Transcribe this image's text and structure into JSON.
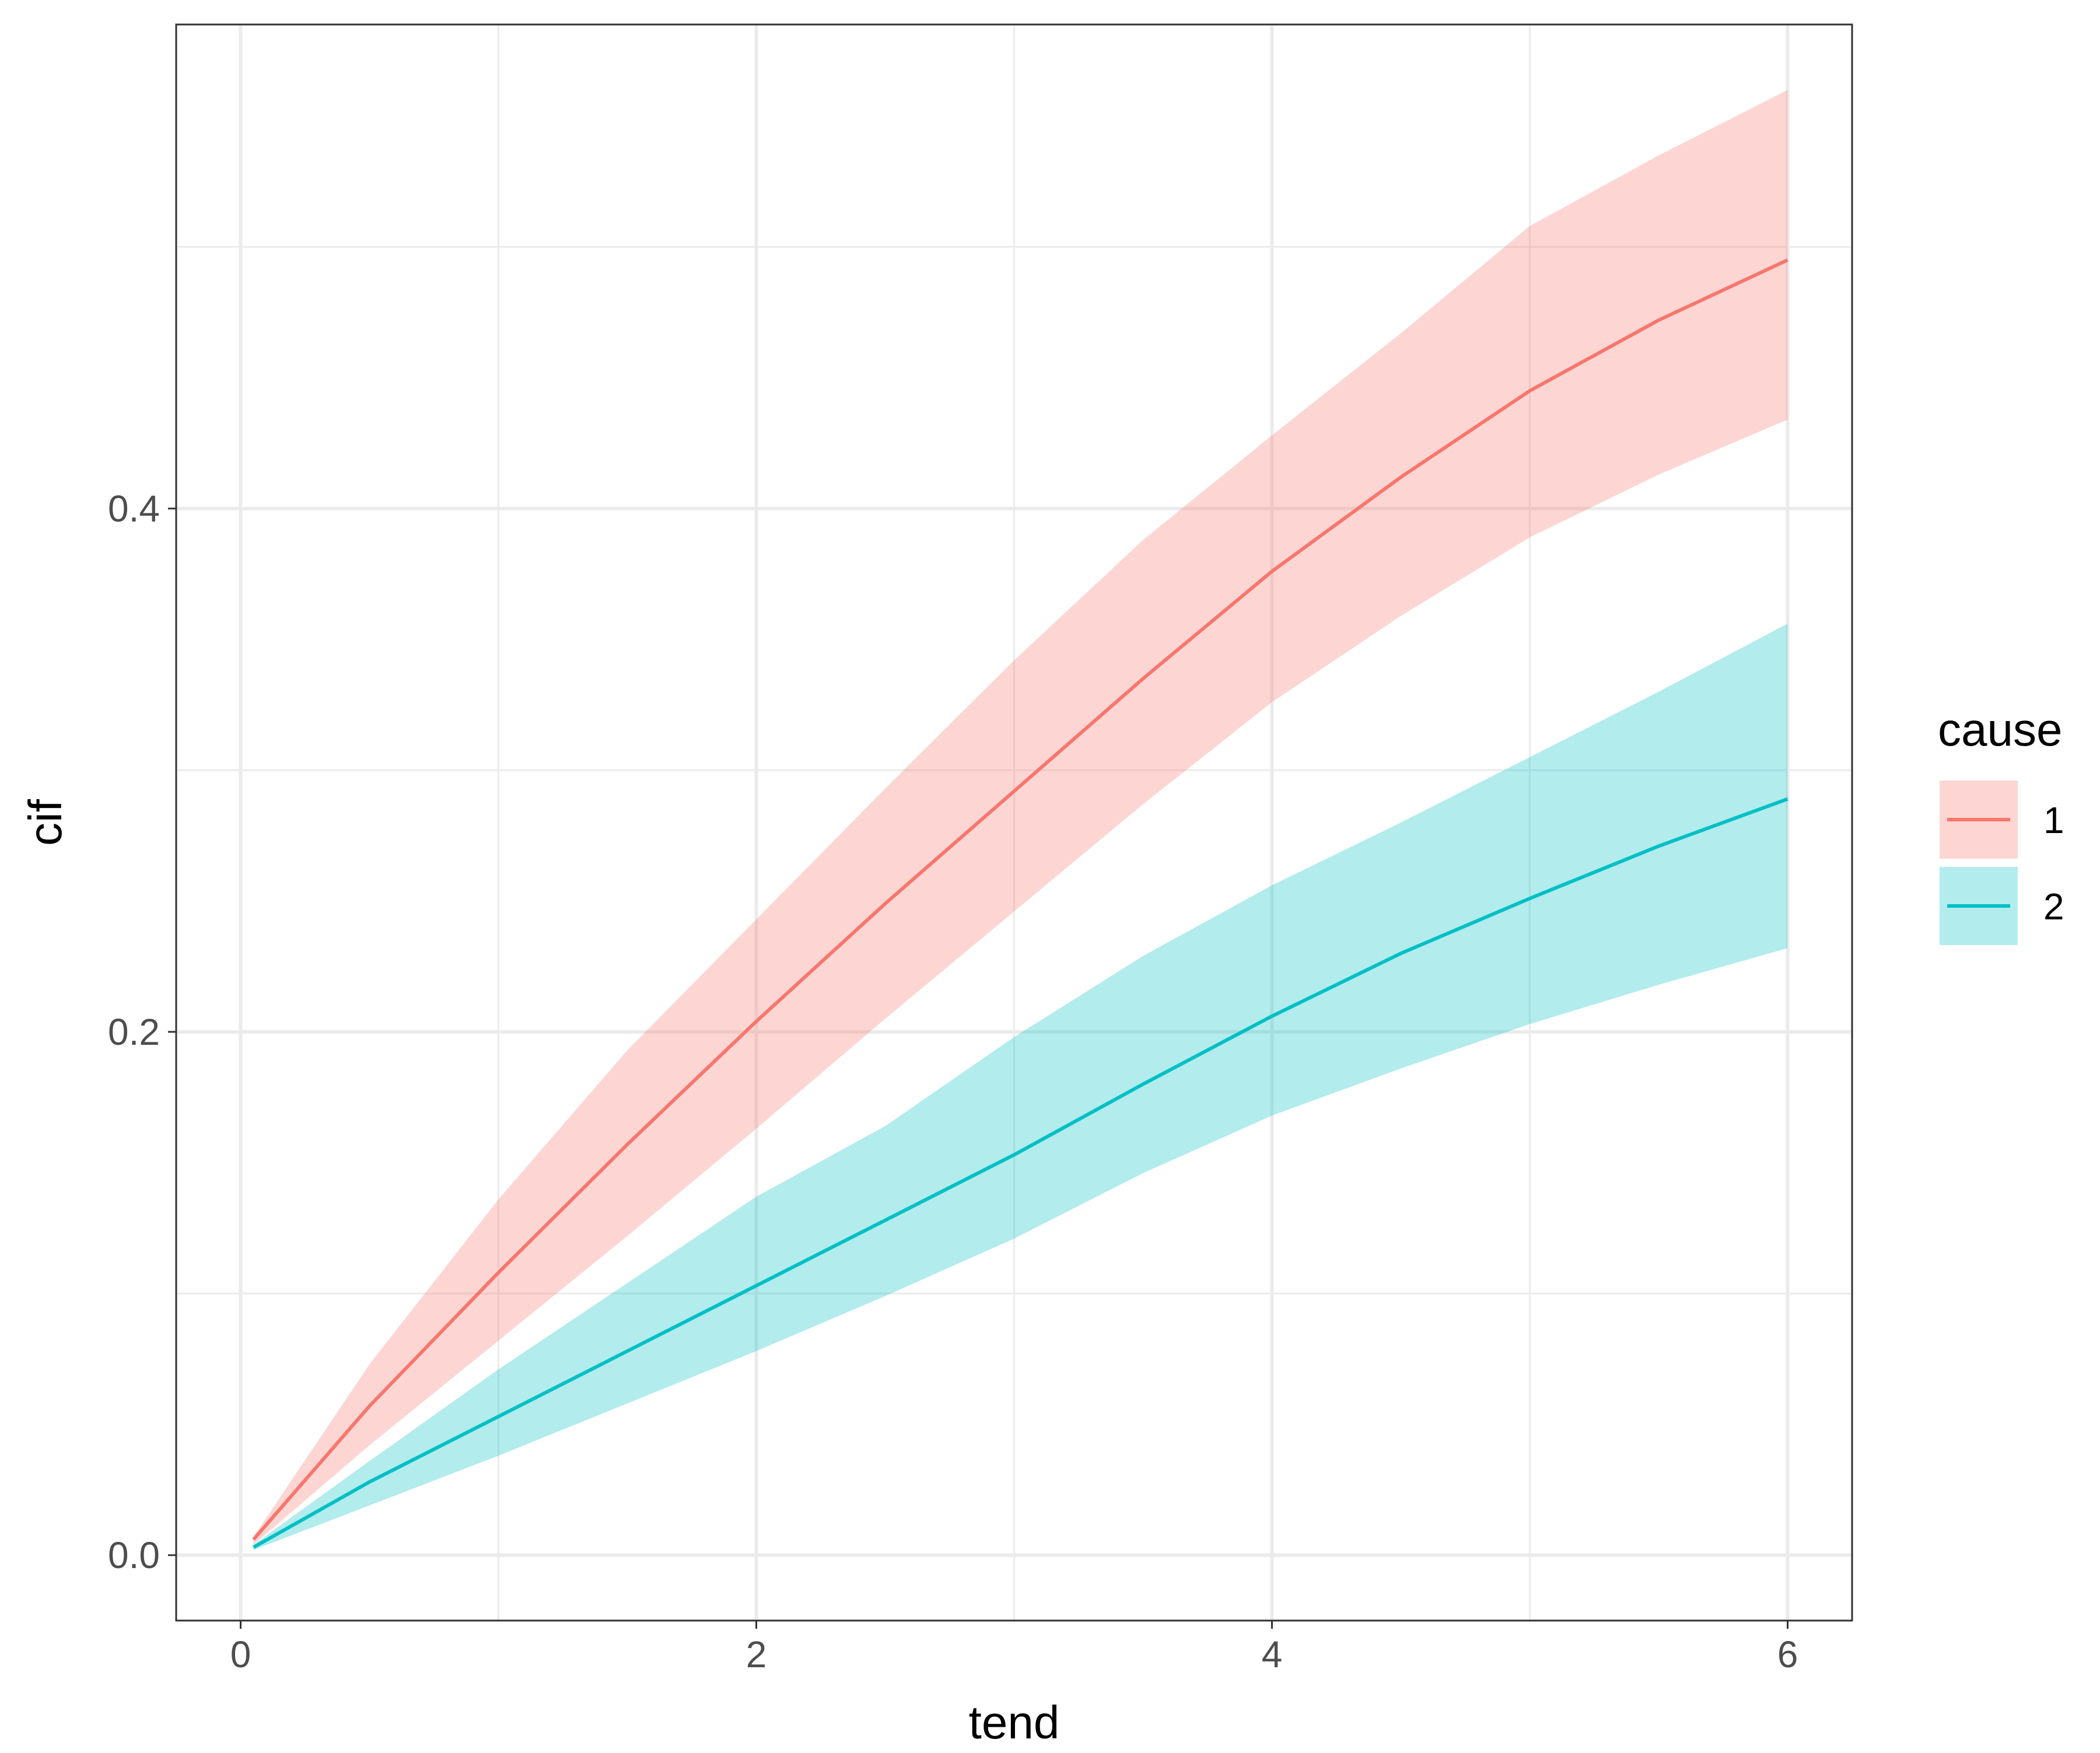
{
  "chart_data": {
    "type": "line",
    "xlabel": "tend",
    "ylabel": "cif",
    "xlim": [
      -0.25,
      6.25
    ],
    "ylim": [
      -0.025,
      0.585
    ],
    "x_ticks": [
      0,
      2,
      4,
      6
    ],
    "x_tick_labels": [
      "0",
      "2",
      "4",
      "6"
    ],
    "x_minor_ticks": [
      1,
      3,
      5
    ],
    "y_ticks": [
      0.0,
      0.2,
      0.4
    ],
    "y_tick_labels": [
      "0.0",
      "0.2",
      "0.4"
    ],
    "y_minor_ticks": [
      0.1,
      0.3,
      0.5
    ],
    "grid": true,
    "theme": "bw",
    "legend": {
      "title": "cause",
      "position": "right",
      "entries": [
        "1",
        "2"
      ]
    },
    "series": [
      {
        "name": "1",
        "color": "#F8766D",
        "fill": "#F8766D",
        "fill_opacity": 0.3,
        "x": [
          0.05,
          0.5,
          1.0,
          1.5,
          2.0,
          2.5,
          3.0,
          3.5,
          4.0,
          4.5,
          5.0,
          5.5,
          6.0
        ],
        "y": [
          0.006,
          0.057,
          0.108,
          0.157,
          0.204,
          0.249,
          0.292,
          0.335,
          0.376,
          0.412,
          0.445,
          0.472,
          0.495
        ],
        "lower": [
          0.004,
          0.042,
          0.082,
          0.122,
          0.163,
          0.205,
          0.246,
          0.287,
          0.326,
          0.359,
          0.389,
          0.413,
          0.434
        ],
        "upper": [
          0.007,
          0.073,
          0.136,
          0.193,
          0.243,
          0.293,
          0.342,
          0.388,
          0.428,
          0.467,
          0.508,
          0.535,
          0.56
        ]
      },
      {
        "name": "2",
        "color": "#00BFC4",
        "fill": "#00BFC4",
        "fill_opacity": 0.3,
        "x": [
          0.05,
          0.5,
          1.0,
          1.5,
          2.0,
          2.5,
          3.0,
          3.5,
          4.0,
          4.5,
          5.0,
          5.5,
          6.0
        ],
        "y": [
          0.003,
          0.028,
          0.053,
          0.078,
          0.103,
          0.128,
          0.153,
          0.18,
          0.206,
          0.23,
          0.251,
          0.271,
          0.289
        ],
        "lower": [
          0.002,
          0.019,
          0.038,
          0.058,
          0.078,
          0.099,
          0.121,
          0.146,
          0.168,
          0.186,
          0.203,
          0.218,
          0.232
        ],
        "upper": [
          0.004,
          0.036,
          0.071,
          0.104,
          0.137,
          0.164,
          0.198,
          0.229,
          0.256,
          0.28,
          0.305,
          0.33,
          0.356
        ]
      }
    ]
  }
}
